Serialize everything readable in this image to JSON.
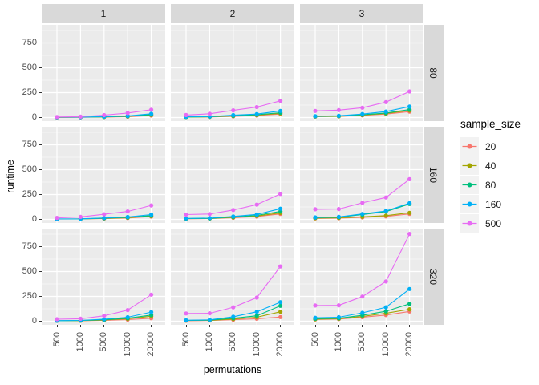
{
  "chart_data": {
    "type": "line",
    "title": "",
    "xlabel": "permutations",
    "ylabel": "runtime",
    "x": [
      500,
      1000,
      5000,
      10000,
      20000
    ],
    "x_tick_labels": [
      "500",
      "1000",
      "5000",
      "10000",
      "20000"
    ],
    "y_ticks": [
      0,
      250,
      500,
      750
    ],
    "y_minor_ticks": [
      125,
      375,
      625,
      875
    ],
    "ylim": [
      -45,
      930
    ],
    "grid": "white major+minor horizontal, white major vertical, on grey panel",
    "legend": {
      "title": "sample_size",
      "position": "right",
      "entries": [
        {
          "label": "20",
          "color": "#F8766D"
        },
        {
          "label": "40",
          "color": "#A3A500"
        },
        {
          "label": "80",
          "color": "#00BF7D"
        },
        {
          "label": "160",
          "color": "#00B0F6"
        },
        {
          "label": "500",
          "color": "#E76BF3"
        }
      ]
    },
    "facets": {
      "col_label_values": [
        "1",
        "2",
        "3"
      ],
      "row_label_values": [
        "80",
        "160",
        "320"
      ]
    },
    "panels": [
      {
        "row": "80",
        "col": "1",
        "series": [
          [
            2,
            3,
            5,
            9,
            20
          ],
          [
            2,
            3,
            6,
            11,
            26
          ],
          [
            3,
            4,
            7,
            13,
            30
          ],
          [
            3,
            4,
            9,
            16,
            38
          ],
          [
            6,
            9,
            24,
            45,
            78
          ]
        ]
      },
      {
        "row": "80",
        "col": "2",
        "series": [
          [
            5,
            6,
            12,
            20,
            35
          ],
          [
            5,
            7,
            15,
            24,
            42
          ],
          [
            6,
            8,
            18,
            28,
            48
          ],
          [
            8,
            10,
            24,
            35,
            66
          ],
          [
            25,
            38,
            72,
            105,
            168
          ]
        ]
      },
      {
        "row": "80",
        "col": "3",
        "series": [
          [
            10,
            12,
            22,
            35,
            60
          ],
          [
            10,
            13,
            25,
            40,
            70
          ],
          [
            12,
            15,
            28,
            45,
            80
          ],
          [
            14,
            18,
            35,
            60,
            110
          ],
          [
            66,
            74,
            98,
            155,
            262
          ]
        ]
      },
      {
        "row": "160",
        "col": "1",
        "series": [
          [
            3,
            4,
            8,
            14,
            28
          ],
          [
            4,
            5,
            10,
            17,
            32
          ],
          [
            4,
            5,
            12,
            20,
            38
          ],
          [
            5,
            6,
            14,
            24,
            48
          ],
          [
            15,
            25,
            52,
            80,
            140
          ]
        ]
      },
      {
        "row": "160",
        "col": "2",
        "series": [
          [
            6,
            8,
            16,
            28,
            55
          ],
          [
            7,
            9,
            20,
            34,
            65
          ],
          [
            8,
            10,
            24,
            40,
            80
          ],
          [
            10,
            13,
            30,
            50,
            107
          ],
          [
            48,
            54,
            94,
            148,
            256
          ]
        ]
      },
      {
        "row": "160",
        "col": "3",
        "series": [
          [
            10,
            12,
            20,
            30,
            55
          ],
          [
            12,
            15,
            26,
            38,
            66
          ],
          [
            18,
            22,
            48,
            78,
            155
          ],
          [
            20,
            25,
            55,
            85,
            163
          ],
          [
            102,
            104,
            166,
            220,
            404
          ]
        ]
      },
      {
        "row": "320",
        "col": "1",
        "series": [
          [
            4,
            5,
            9,
            16,
            30
          ],
          [
            5,
            6,
            12,
            24,
            50
          ],
          [
            5,
            7,
            15,
            30,
            62
          ],
          [
            6,
            8,
            20,
            40,
            92
          ],
          [
            20,
            25,
            55,
            112,
            268
          ]
        ]
      },
      {
        "row": "320",
        "col": "2",
        "series": [
          [
            5,
            7,
            15,
            25,
            42
          ],
          [
            7,
            9,
            22,
            40,
            95
          ],
          [
            8,
            11,
            30,
            55,
            155
          ],
          [
            10,
            14,
            45,
            95,
            192
          ],
          [
            78,
            80,
            140,
            238,
            552
          ]
        ]
      },
      {
        "row": "320",
        "col": "3",
        "series": [
          [
            18,
            22,
            40,
            62,
            98
          ],
          [
            20,
            25,
            48,
            80,
            120
          ],
          [
            25,
            30,
            60,
            100,
            175
          ],
          [
            35,
            40,
            85,
            140,
            324
          ],
          [
            158,
            160,
            248,
            400,
            878
          ]
        ]
      }
    ]
  },
  "colors": {
    "panel_bg": "#EBEBEB",
    "strip_bg": "#D9D9D9",
    "gridline": "#FFFFFF",
    "axis_text": "#4D4D4D",
    "title_text": "#000000",
    "legend_key_bg": "#F2F2F2"
  }
}
